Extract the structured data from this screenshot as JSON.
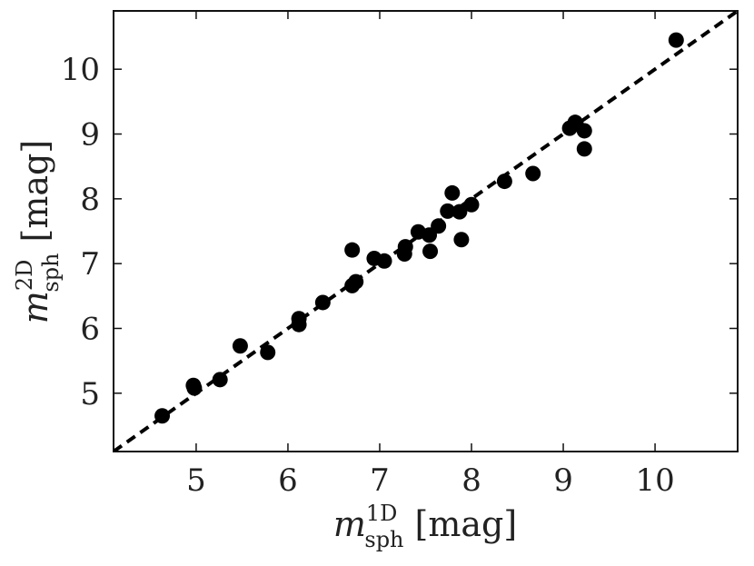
{
  "chart_data": {
    "type": "scatter",
    "xlabel": {
      "symbol": "m",
      "subscript": "sph",
      "superscript": "1D",
      "unit": "[mag]"
    },
    "ylabel": {
      "symbol": "m",
      "subscript": "sph",
      "superscript": "2D",
      "unit": "[mag]"
    },
    "xlim": [
      4.1,
      10.9
    ],
    "ylim": [
      4.1,
      10.9
    ],
    "xticks": [
      5,
      6,
      7,
      8,
      9,
      10
    ],
    "yticks": [
      5,
      6,
      7,
      8,
      9,
      10
    ],
    "grid": false,
    "reference_line": {
      "style": "dashed",
      "from": [
        4.1,
        4.1
      ],
      "to": [
        10.9,
        10.9
      ]
    },
    "marker_color": "#000000",
    "points": [
      [
        4.63,
        4.65
      ],
      [
        4.97,
        5.12
      ],
      [
        4.98,
        5.08
      ],
      [
        5.26,
        5.21
      ],
      [
        5.48,
        5.73
      ],
      [
        5.78,
        5.63
      ],
      [
        6.12,
        6.06
      ],
      [
        6.12,
        6.15
      ],
      [
        6.38,
        6.4
      ],
      [
        6.7,
        7.21
      ],
      [
        6.7,
        6.66
      ],
      [
        6.74,
        6.72
      ],
      [
        6.94,
        7.08
      ],
      [
        7.05,
        7.04
      ],
      [
        7.27,
        7.15
      ],
      [
        7.28,
        7.26
      ],
      [
        7.42,
        7.49
      ],
      [
        7.54,
        7.44
      ],
      [
        7.55,
        7.19
      ],
      [
        7.64,
        7.58
      ],
      [
        7.74,
        7.81
      ],
      [
        7.79,
        8.09
      ],
      [
        7.87,
        7.8
      ],
      [
        7.89,
        7.37
      ],
      [
        8.0,
        7.91
      ],
      [
        8.36,
        8.27
      ],
      [
        8.67,
        8.39
      ],
      [
        9.07,
        9.09
      ],
      [
        9.13,
        9.18
      ],
      [
        9.14,
        9.15
      ],
      [
        9.23,
        9.05
      ],
      [
        9.23,
        8.77
      ],
      [
        10.23,
        10.45
      ]
    ]
  }
}
